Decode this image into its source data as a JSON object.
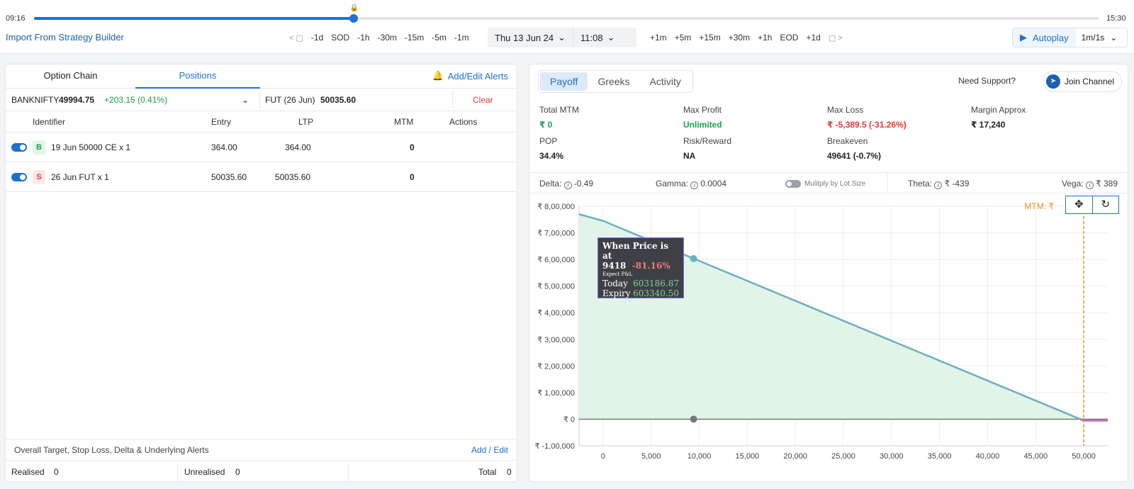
{
  "timeline": {
    "start": "09:16",
    "end": "15:30",
    "progress": 0.3
  },
  "toolbar": {
    "import_label": "Import From Strategy Builder",
    "back_jumps": [
      "-1d",
      "SOD",
      "-1h",
      "-30m",
      "-15m",
      "-5m",
      "-1m"
    ],
    "forward_jumps": [
      "+1m",
      "+5m",
      "+15m",
      "+30m",
      "+1h",
      "EOD",
      "+1d"
    ],
    "date": "Thu  13 Jun 24",
    "time": "11:08",
    "autoplay_label": "Autoplay",
    "speed": "1m/1s"
  },
  "left": {
    "tabs": [
      "Option Chain",
      "Positions"
    ],
    "active_tab": "Positions",
    "alerts_link": "Add/Edit Alerts",
    "underlying": {
      "name": "BANKNIFTY",
      "price": "49994.75",
      "change": "+203.15 (0.41%)"
    },
    "future": {
      "label": "FUT (26 Jun)",
      "price": "50035.60"
    },
    "clear_label": "Clear",
    "columns": {
      "identifier": "Identifier",
      "entry": "Entry",
      "ltp": "LTP",
      "mtm": "MTM",
      "actions": "Actions"
    },
    "rows": [
      {
        "side": "B",
        "identifier": "19 Jun  50000  CE  x 1",
        "entry": "364.00",
        "ltp": "364.00",
        "mtm": "0"
      },
      {
        "side": "S",
        "identifier": "26 Jun  FUT  x 1",
        "entry": "50035.60",
        "ltp": "50035.60",
        "mtm": "0"
      }
    ],
    "alert_text": "Overall Target, Stop Loss, Delta & Underlying Alerts",
    "alert_action": "Add / Edit",
    "summary": {
      "realised_label": "Realised",
      "realised": "0",
      "unrealised_label": "Unrealised",
      "unrealised": "0",
      "total_label": "Total",
      "total": "0"
    }
  },
  "right": {
    "tabs": [
      "Payoff",
      "Greeks",
      "Activity"
    ],
    "active_tab": "Payoff",
    "support_label": "Need Support?",
    "join_label": "Join Channel",
    "stats": [
      {
        "label": "Total MTM",
        "value": "₹ 0",
        "tone": "green"
      },
      {
        "label": "Max Profit",
        "value": "Unlimited",
        "tone": "green"
      },
      {
        "label": "Max Loss",
        "value": "₹ -5,389.5 (-31.26%)",
        "tone": "red"
      },
      {
        "label": "Margin Approx",
        "value": "₹ 17,240",
        "tone": "dark"
      },
      {
        "label": "POP",
        "value": "34.4%",
        "tone": "dark"
      },
      {
        "label": "Risk/Reward",
        "value": "NA",
        "tone": "dark"
      },
      {
        "label": "Breakeven",
        "value": "49641 (-0.7%)",
        "tone": "dark"
      }
    ],
    "greeks": {
      "delta_label": "Delta:",
      "delta": "-0.49",
      "gamma_label": "Gamma:",
      "gamma": "0.0004",
      "lot_label": "Mulitply by Lot Size",
      "theta_label": "Theta:",
      "theta": "₹ -439",
      "vega_label": "Vega:",
      "vega": "₹ 389"
    },
    "mtm_label": "MTM: ₹",
    "tooltip": {
      "title": "When Price is at",
      "price": "9418",
      "pct": "-81.16%",
      "subtitle": "Expect P&L",
      "today_label": "Today",
      "today": "603186.87",
      "expiry_label": "Expiry",
      "expiry": "603340.50"
    }
  },
  "chart_data": {
    "type": "line",
    "xlim": [
      -2500,
      52500
    ],
    "ylim": [
      -100000,
      800000
    ],
    "x_ticks": [
      0,
      5000,
      10000,
      15000,
      20000,
      25000,
      30000,
      35000,
      40000,
      45000,
      50000
    ],
    "x_tick_labels": [
      "0",
      "5,000",
      "10,000",
      "15,000",
      "20,000",
      "25,000",
      "30,000",
      "35,000",
      "40,000",
      "45,000",
      "50,000"
    ],
    "y_ticks": [
      800000,
      700000,
      600000,
      500000,
      400000,
      300000,
      200000,
      100000,
      0,
      -100000
    ],
    "y_tick_labels": [
      "₹ 8,00,000",
      "₹ 7,00,000",
      "₹ 6,00,000",
      "₹ 5,00,000",
      "₹ 4,00,000",
      "₹ 3,00,000",
      "₹ 2,00,000",
      "₹ 1,00,000",
      "₹ 0",
      "₹ -1,00,000"
    ],
    "series": [
      {
        "x": [
          -2500,
          0,
          9418,
          49641,
          50000,
          52500
        ],
        "y": [
          770000,
          745000,
          603340,
          0,
          -5389,
          -5389
        ]
      }
    ],
    "current_price": 49994.75,
    "markers": [
      {
        "x": 9418,
        "y": 603340
      },
      {
        "x": 9418,
        "y": 0
      }
    ],
    "grid": true,
    "colors": {
      "line": "#6bb0c2",
      "fill": "#dff3e6",
      "zero": "#777777",
      "loss": "#c065c0",
      "current": "#e0951f"
    }
  }
}
